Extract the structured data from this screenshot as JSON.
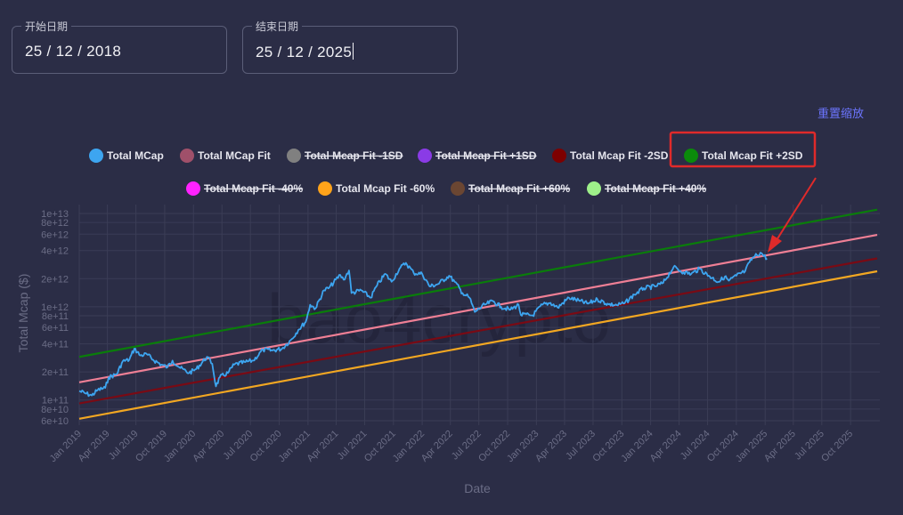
{
  "start_date": {
    "label": "开始日期",
    "value": "25 / 12 / 2018"
  },
  "end_date": {
    "label": "结束日期",
    "value": "25 / 12 / 2025"
  },
  "reset_zoom_label": "重置缩放",
  "watermark": "bao4crypto",
  "chart_data": {
    "type": "line",
    "xlabel": "Date",
    "ylabel": "Total Mcap ($)",
    "y_scale": "log",
    "ylim": [
      55000000000,
      13000000000000
    ],
    "xlim": [
      "2019-01-01",
      "2025-12-25"
    ],
    "grid": true,
    "legend_position": "top",
    "x_ticks": [
      "Jan 2019",
      "Apr 2019",
      "Jul 2019",
      "Oct 2019",
      "Jan 2020",
      "Apr 2020",
      "Jul 2020",
      "Oct 2020",
      "Jan 2021",
      "Apr 2021",
      "Jul 2021",
      "Oct 2021",
      "Jan 2022",
      "Apr 2022",
      "Jul 2022",
      "Oct 2022",
      "Jan 2023",
      "Apr 2023",
      "Jul 2023",
      "Oct 2023",
      "Jan 2024",
      "Apr 2024",
      "Jul 2024",
      "Oct 2024",
      "Jan 2025",
      "Apr 2025",
      "Jul 2025",
      "Oct 2025"
    ],
    "y_ticks": [
      {
        "label": "1e+13",
        "value": 10000000000000
      },
      {
        "label": "8e+12",
        "value": 8000000000000
      },
      {
        "label": "6e+12",
        "value": 6000000000000
      },
      {
        "label": "4e+12",
        "value": 4000000000000
      },
      {
        "label": "2e+12",
        "value": 2000000000000
      },
      {
        "label": "1e+12",
        "value": 1000000000000
      },
      {
        "label": "8e+11",
        "value": 800000000000
      },
      {
        "label": "6e+11",
        "value": 600000000000
      },
      {
        "label": "4e+11",
        "value": 400000000000
      },
      {
        "label": "2e+11",
        "value": 200000000000
      },
      {
        "label": "1e+11",
        "value": 100000000000
      },
      {
        "label": "8e+10",
        "value": 80000000000
      },
      {
        "label": "6e+10",
        "value": 60000000000
      }
    ],
    "legend": [
      {
        "name": "Total MCap",
        "color": "#3da5f0",
        "visible": true
      },
      {
        "name": "Total MCap Fit",
        "color": "#a0506a",
        "visible": true
      },
      {
        "name": "Total Mcap Fit -1SD",
        "color": "#808080",
        "visible": false
      },
      {
        "name": "Total Mcap Fit +1SD",
        "color": "#8a3be6",
        "visible": false
      },
      {
        "name": "Total Mcap Fit -2SD",
        "color": "#7d0000",
        "visible": true
      },
      {
        "name": "Total Mcap Fit +2SD",
        "color": "#0b8a0b",
        "visible": true,
        "highlighted": true
      },
      {
        "name": "Total Mcap Fit -40%",
        "color": "#ff22ff",
        "visible": false
      },
      {
        "name": "Total Mcap Fit -60%",
        "color": "#ffa31a",
        "visible": true
      },
      {
        "name": "Total Mcap Fit +60%",
        "color": "#6b4632",
        "visible": false
      },
      {
        "name": "Total Mcap Fit +40%",
        "color": "#9ef08a",
        "visible": false
      }
    ],
    "fit_lines": [
      {
        "name": "Total Mcap Fit +2SD",
        "color": "#0a7d0a",
        "start": [
          "2019-01-01",
          290000000000
        ],
        "end": [
          "2025-12-25",
          11000000000000
        ]
      },
      {
        "name": "Total MCap Fit",
        "color": "#ef7f95",
        "start": [
          "2019-01-01",
          155000000000
        ],
        "end": [
          "2025-12-25",
          5900000000000
        ]
      },
      {
        "name": "Total Mcap Fit -2SD",
        "color": "#7a0a14",
        "start": [
          "2019-01-01",
          92000000000
        ],
        "end": [
          "2025-12-25",
          3300000000000
        ]
      },
      {
        "name": "Total Mcap Fit -60%",
        "color": "#f2a722",
        "start": [
          "2019-01-01",
          63000000000
        ],
        "end": [
          "2025-12-25",
          2400000000000
        ]
      }
    ],
    "series": [
      {
        "name": "Total MCap",
        "color": "#3da5f0",
        "points": [
          [
            "2019-01-01",
            125000000000.0
          ],
          [
            "2019-01-20",
            118000000000.0
          ],
          [
            "2019-02-10",
            112000000000.0
          ],
          [
            "2019-03-01",
            128000000000.0
          ],
          [
            "2019-03-25",
            135000000000.0
          ],
          [
            "2019-04-05",
            175000000000.0
          ],
          [
            "2019-05-01",
            190000000000.0
          ],
          [
            "2019-05-20",
            260000000000.0
          ],
          [
            "2019-06-10",
            270000000000.0
          ],
          [
            "2019-06-26",
            355000000000.0
          ],
          [
            "2019-07-15",
            300000000000.0
          ],
          [
            "2019-08-05",
            310000000000.0
          ],
          [
            "2019-08-25",
            270000000000.0
          ],
          [
            "2019-09-20",
            240000000000.0
          ],
          [
            "2019-10-10",
            225000000000.0
          ],
          [
            "2019-10-26",
            265000000000.0
          ],
          [
            "2019-11-20",
            220000000000.0
          ],
          [
            "2019-12-18",
            195000000000.0
          ],
          [
            "2020-01-10",
            215000000000.0
          ],
          [
            "2020-02-13",
            290000000000.0
          ],
          [
            "2020-03-01",
            245000000000.0
          ],
          [
            "2020-03-13",
            140000000000.0
          ],
          [
            "2020-03-25",
            175000000000.0
          ],
          [
            "2020-04-20",
            195000000000.0
          ],
          [
            "2020-05-10",
            240000000000.0
          ],
          [
            "2020-06-15",
            255000000000.0
          ],
          [
            "2020-07-10",
            265000000000.0
          ],
          [
            "2020-08-10",
            345000000000.0
          ],
          [
            "2020-09-10",
            340000000000.0
          ],
          [
            "2020-10-10",
            355000000000.0
          ],
          [
            "2020-11-10",
            450000000000.0
          ],
          [
            "2020-12-01",
            565000000000.0
          ],
          [
            "2020-12-25",
            690000000000.0
          ],
          [
            "2021-01-08",
            1050000000000.0
          ],
          [
            "2021-01-25",
            960000000000.0
          ],
          [
            "2021-02-21",
            1500000000000.0
          ],
          [
            "2021-03-10",
            1600000000000.0
          ],
          [
            "2021-04-14",
            2200000000000.0
          ],
          [
            "2021-04-25",
            1950000000000.0
          ],
          [
            "2021-05-12",
            2450000000000.0
          ],
          [
            "2021-05-20",
            1400000000000.0
          ],
          [
            "2021-06-20",
            1500000000000.0
          ],
          [
            "2021-07-20",
            1250000000000.0
          ],
          [
            "2021-08-10",
            1700000000000.0
          ],
          [
            "2021-09-05",
            2250000000000.0
          ],
          [
            "2021-09-25",
            1850000000000.0
          ],
          [
            "2021-10-20",
            2550000000000.0
          ],
          [
            "2021-11-10",
            2950000000000.0
          ],
          [
            "2021-12-05",
            2300000000000.0
          ],
          [
            "2022-01-01",
            2250000000000.0
          ],
          [
            "2022-01-25",
            1650000000000.0
          ],
          [
            "2022-02-20",
            1750000000000.0
          ],
          [
            "2022-03-28",
            2150000000000.0
          ],
          [
            "2022-04-15",
            1850000000000.0
          ],
          [
            "2022-05-10",
            1400000000000.0
          ],
          [
            "2022-06-01",
            1250000000000.0
          ],
          [
            "2022-06-18",
            880000000000.0
          ],
          [
            "2022-07-20",
            1050000000000.0
          ],
          [
            "2022-08-15",
            1150000000000.0
          ],
          [
            "2022-09-10",
            1000000000000.0
          ],
          [
            "2022-10-10",
            930000000000.0
          ],
          [
            "2022-11-05",
            1050000000000.0
          ],
          [
            "2022-11-12",
            820000000000.0
          ],
          [
            "2022-12-20",
            810000000000.0
          ],
          [
            "2023-01-20",
            1050000000000.0
          ],
          [
            "2023-02-15",
            1100000000000.0
          ],
          [
            "2023-03-10",
            980000000000.0
          ],
          [
            "2023-04-15",
            1250000000000.0
          ],
          [
            "2023-05-20",
            1150000000000.0
          ],
          [
            "2023-06-15",
            1080000000000.0
          ],
          [
            "2023-07-15",
            1200000000000.0
          ],
          [
            "2023-08-20",
            1060000000000.0
          ],
          [
            "2023-09-15",
            1040000000000.0
          ],
          [
            "2023-10-10",
            1090000000000.0
          ],
          [
            "2023-11-10",
            1350000000000.0
          ],
          [
            "2023-12-10",
            1580000000000.0
          ],
          [
            "2024-01-15",
            1650000000000.0
          ],
          [
            "2024-02-10",
            1800000000000.0
          ],
          [
            "2024-03-14",
            2650000000000.0
          ],
          [
            "2024-04-15",
            2350000000000.0
          ],
          [
            "2024-05-10",
            2250000000000.0
          ],
          [
            "2024-06-05",
            2550000000000.0
          ],
          [
            "2024-07-05",
            2150000000000.0
          ],
          [
            "2024-08-05",
            1850000000000.0
          ],
          [
            "2024-08-25",
            2100000000000.0
          ],
          [
            "2024-09-07",
            1900000000000.0
          ],
          [
            "2024-10-01",
            2150000000000.0
          ],
          [
            "2024-10-29",
            2400000000000.0
          ],
          [
            "2024-11-12",
            3000000000000.0
          ],
          [
            "2024-11-25",
            3400000000000.0
          ],
          [
            "2024-12-17",
            3800000000000.0
          ],
          [
            "2025-01-07",
            3300000000000.0
          ]
        ]
      }
    ]
  }
}
